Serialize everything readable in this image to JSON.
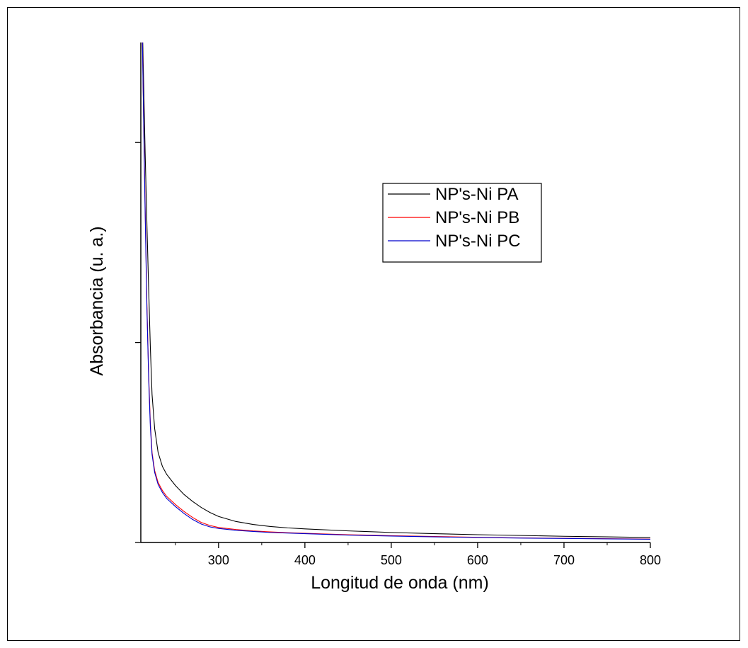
{
  "chart_data": {
    "type": "line",
    "title": "",
    "xlabel": "Longitud de onda (nm)",
    "ylabel": "Absorbancia (u. a.)",
    "xlim": [
      210,
      800
    ],
    "ylim": [
      0,
      2.5
    ],
    "x_ticks": [
      300,
      400,
      500,
      600,
      700,
      800
    ],
    "y_ticks_unlabeled": [
      1.0,
      2.0
    ],
    "grid": false,
    "legend_position": "upper-right",
    "series": [
      {
        "name": "NP's-Ni PA",
        "color": "#000000",
        "x": [
          211,
          213,
          215,
          217,
          219,
          221,
          223,
          226,
          230,
          235,
          240,
          250,
          260,
          270,
          280,
          290,
          300,
          320,
          340,
          360,
          380,
          400,
          450,
          500,
          550,
          600,
          650,
          700,
          750,
          800
        ],
        "y": [
          2.75,
          2.35,
          1.95,
          1.6,
          1.28,
          0.98,
          0.74,
          0.57,
          0.45,
          0.38,
          0.34,
          0.285,
          0.24,
          0.205,
          0.175,
          0.15,
          0.13,
          0.105,
          0.09,
          0.08,
          0.073,
          0.068,
          0.058,
          0.05,
          0.044,
          0.039,
          0.035,
          0.031,
          0.028,
          0.025
        ]
      },
      {
        "name": "NP's-Ni PB",
        "color": "#ff0000",
        "x": [
          211,
          213,
          215,
          217,
          219,
          221,
          223,
          226,
          230,
          235,
          240,
          250,
          260,
          270,
          280,
          290,
          300,
          320,
          340,
          360,
          380,
          400,
          450,
          500,
          550,
          600,
          650,
          700,
          750,
          800
        ],
        "y": [
          2.75,
          2.2,
          1.68,
          1.2,
          0.85,
          0.6,
          0.45,
          0.36,
          0.3,
          0.26,
          0.23,
          0.19,
          0.155,
          0.125,
          0.1,
          0.085,
          0.075,
          0.065,
          0.058,
          0.053,
          0.049,
          0.046,
          0.039,
          0.034,
          0.03,
          0.026,
          0.023,
          0.021,
          0.019,
          0.017
        ]
      },
      {
        "name": "NP's-Ni PC",
        "color": "#0000cc",
        "x": [
          211,
          213,
          215,
          217,
          219,
          221,
          223,
          226,
          230,
          235,
          240,
          250,
          260,
          270,
          280,
          290,
          300,
          320,
          340,
          360,
          380,
          400,
          450,
          500,
          550,
          600,
          650,
          700,
          750,
          800
        ],
        "y": [
          2.75,
          2.18,
          1.65,
          1.18,
          0.83,
          0.58,
          0.44,
          0.35,
          0.29,
          0.25,
          0.22,
          0.18,
          0.145,
          0.115,
          0.092,
          0.078,
          0.07,
          0.061,
          0.055,
          0.05,
          0.047,
          0.044,
          0.037,
          0.032,
          0.028,
          0.025,
          0.022,
          0.02,
          0.018,
          0.016
        ]
      }
    ]
  }
}
